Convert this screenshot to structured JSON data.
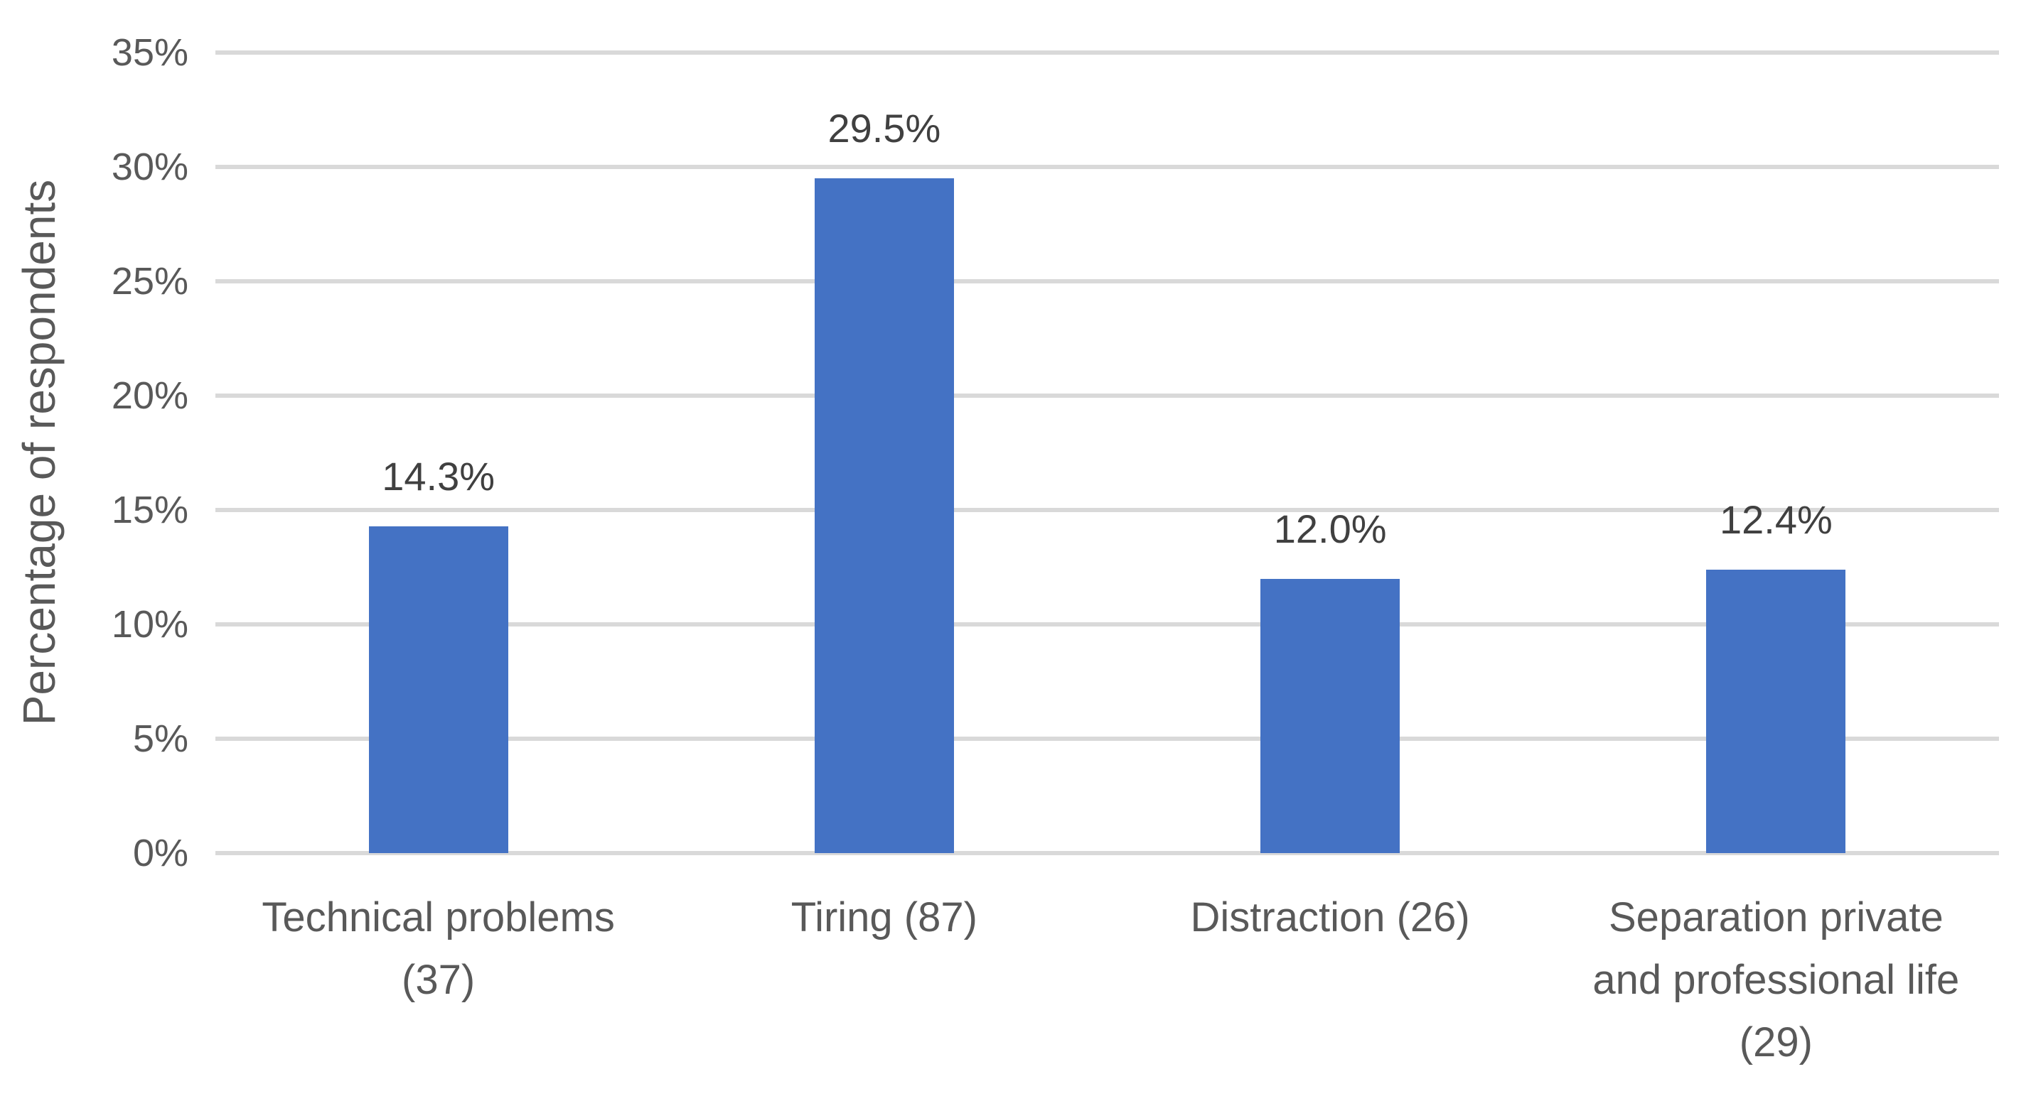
{
  "chart_data": {
    "type": "bar",
    "title": "",
    "xlabel": "",
    "ylabel": "Percentage of respondents",
    "categories": [
      "Technical problems (37)",
      "Tiring (87)",
      "Distraction (26)",
      "Separation private and professional life (29)"
    ],
    "categories_lines": [
      [
        "Technical problems",
        "(37)"
      ],
      [
        "Tiring (87)"
      ],
      [
        "Distraction (26)"
      ],
      [
        "Separation private",
        "and professional life",
        "(29)"
      ]
    ],
    "values": [
      14.3,
      29.5,
      12.0,
      12.4
    ],
    "data_labels": [
      "14.3%",
      "29.5%",
      "12.0%",
      "12.4%"
    ],
    "respondent_counts": [
      37,
      87,
      26,
      29
    ],
    "y_ticks": [
      "35%",
      "30%",
      "25%",
      "20%",
      "15%",
      "10%",
      "5%",
      "0%"
    ],
    "y_tick_values": [
      35,
      30,
      25,
      20,
      15,
      10,
      5,
      0
    ],
    "ylim": [
      0,
      35
    ],
    "grid": true,
    "legend": false,
    "bar_color": "#4472C4",
    "gridline_color": "#D9D9D9",
    "axis_line_color": "#D9D9D9",
    "data_label_color": "#404040",
    "axis_text_color": "#595959"
  }
}
